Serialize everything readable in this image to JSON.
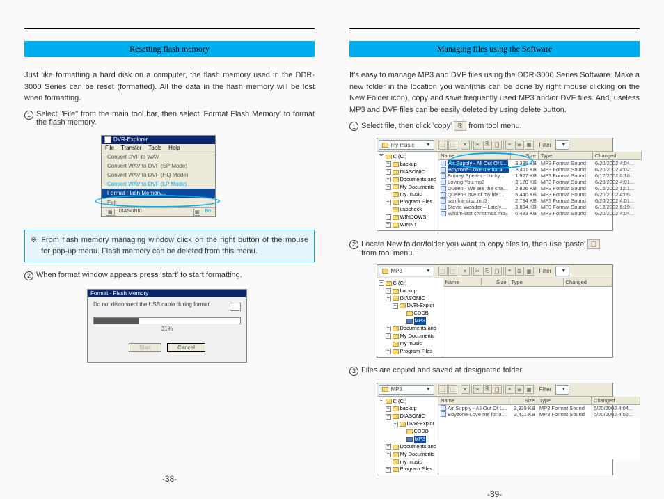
{
  "left": {
    "header": "Resetting flash memory",
    "intro": "Just like formatting a hard disk on a computer, the flash memory used in the DDR-3000 Series can be reset (formatted). All the data in the flash memory will be lost when formatting.",
    "step1": "Select \"File\" from the main tool bar, then select 'Format Flash Memory' to format the flash memory.",
    "dvr_title": "DVR-Explorer",
    "dvr_menu": [
      "File",
      "Transfer",
      "Tools",
      "Help"
    ],
    "dvr_items": [
      "Convert DVF to WAV",
      "Convert WAV to DVF (SP Mode)",
      "Convert WAV to DVF (HQ Mode)",
      "Convert WAV to DVF (LP Mode)"
    ],
    "dvr_highlight": "Format Flash Memory...",
    "dvr_exit": "Exit",
    "dvr_tail": "DIASONIC",
    "dvr_tail2": "Bo",
    "note": "From flash memory managing window click on the right button of the mouse for pop-up menu. Flash memory can be deleted from this menu.",
    "note_mark": "※",
    "step2": "When format window appears press 'start' to start formatting.",
    "pd_title": "Format - Flash Memory",
    "pd_hint": "Do not disconnect the USB cable during format.",
    "pd_pct": "31%",
    "btn_start": "Start",
    "btn_cancel": "Cancel",
    "page_num": "-38-"
  },
  "right": {
    "header": "Managing files using the Software",
    "intro": "It's easy to manage MP3 and DVF files using the DDR-3000 Series Software. Make a new folder in the location you want(this can be done by right mouse clicking on the New Folder icon), copy and save frequently used MP3 and/or DVF files. And, useless MP3 and DVF files can be easily deleted by using delete button.",
    "step1": "Select file, then click 'copy'",
    "step1b": "from tool menu.",
    "step2": "Locate New folder/folder you want to copy files to, then use 'paste'",
    "step2b": "from tool menu.",
    "step3": "Files are copied and saved at designated folder.",
    "filter_label": "Filter",
    "tree1_root": "C (C:)",
    "tree1": [
      "backup",
      "DIASONIC",
      "Documents and",
      "My Documents",
      "my music",
      "Program Files",
      "usbcheck",
      "WINDOWS",
      "WINNT"
    ],
    "cols": [
      "Name",
      "Size",
      "Type",
      "Changed"
    ],
    "rows1": [
      {
        "n": "Air Supply - All Out Of L...",
        "s": "3,339 KB",
        "t": "MP3 Format Sound",
        "c": "6/20/2002 4:04..."
      },
      {
        "n": "Boyzone-Love me for a ...",
        "s": "3,411 KB",
        "t": "MP3 Format Sound",
        "c": "6/20/2002 4:02..."
      },
      {
        "n": "Britney Spears - Lucky....",
        "s": "1,927 KB",
        "t": "MP3 Format Sound",
        "c": "6/12/2002 6:18..."
      },
      {
        "n": "Loving You.mp3",
        "s": "3,120 KB",
        "t": "MP3 Format Sound",
        "c": "6/20/2002 4:01..."
      },
      {
        "n": "Queen - We are the cha...",
        "s": "2,826 KB",
        "t": "MP3 Format Sound",
        "c": "6/15/2002 12:1..."
      },
      {
        "n": "Queen-Love of my life....",
        "s": "5,440 KB",
        "t": "MP3 Format Sound",
        "c": "6/20/2002 4:05..."
      },
      {
        "n": "san franciso.mp3",
        "s": "2,784 KB",
        "t": "MP3 Format Sound",
        "c": "6/20/2002 4:01..."
      },
      {
        "n": "Stevie Wonder – Lately....",
        "s": "3,834 KB",
        "t": "MP3 Format Sound",
        "c": "6/12/2002 6:19..."
      },
      {
        "n": "Wham-last christmas.mp3",
        "s": "6,433 KB",
        "t": "MP3 Format Sound",
        "c": "6/20/2002 4:04..."
      }
    ],
    "combo1": "my music",
    "combo2": "MP3",
    "combo3": "MP3",
    "tree2_root": "C (C:)",
    "tree2": [
      "backup",
      "DIASONIC"
    ],
    "tree2_sub": [
      "DVR-Explor",
      "CDDB",
      "MP3"
    ],
    "tree2_tail": [
      "Documents and",
      "My Documents",
      "my music",
      "Program Files"
    ],
    "rows3": [
      {
        "n": "Air Supply - All Out Of L...",
        "s": "3,339 KB",
        "t": "MP3 Format Sound",
        "c": "6/20/2002 4:04..."
      },
      {
        "n": "Boyzone-Love me for a ...",
        "s": "3,411 KB",
        "t": "MP3 Format Sound",
        "c": "6/20/2002 4:02..."
      }
    ],
    "page_num": "-39-"
  }
}
